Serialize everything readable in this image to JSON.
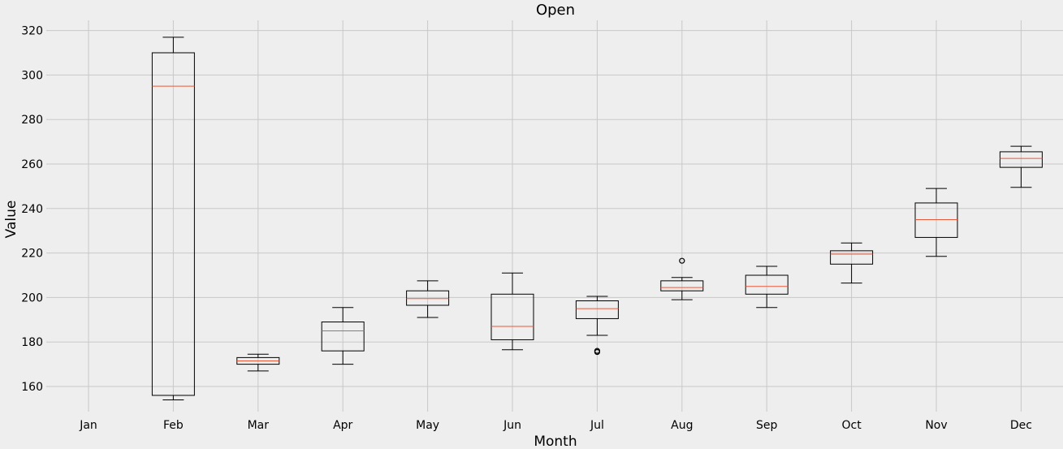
{
  "chart_data": {
    "type": "boxplot",
    "title": "Open",
    "xlabel": "Month",
    "ylabel": "Value",
    "ylim": [
      147,
      326
    ],
    "yticks": [
      160,
      180,
      200,
      220,
      240,
      260,
      280,
      300,
      320
    ],
    "grid": true,
    "categories": [
      "Jan",
      "Feb",
      "Mar",
      "Apr",
      "May",
      "Jun",
      "Jul",
      "Aug",
      "Sep",
      "Oct",
      "Nov",
      "Dec"
    ],
    "boxes": [
      null,
      {
        "whislo": 154,
        "q1": 156,
        "med": 295,
        "q3": 310,
        "whishi": 317,
        "fliers": []
      },
      {
        "whislo": 167,
        "q1": 170,
        "med": 171.5,
        "q3": 173,
        "whishi": 174.5,
        "fliers": []
      },
      {
        "whislo": 170,
        "q1": 176,
        "med": 185,
        "q3": 189,
        "whishi": 195.5,
        "fliers": []
      },
      {
        "whislo": 191,
        "q1": 196.5,
        "med": 199.5,
        "q3": 203,
        "whishi": 207.5,
        "fliers": []
      },
      {
        "whislo": 176.5,
        "q1": 181,
        "med": 187,
        "q3": 201.5,
        "whishi": 211,
        "fliers": []
      },
      {
        "whislo": 183,
        "q1": 190.5,
        "med": 195,
        "q3": 198.5,
        "whishi": 200.5,
        "fliers": [
          175.5,
          176
        ]
      },
      {
        "whislo": 199,
        "q1": 203,
        "med": 204.5,
        "q3": 207.5,
        "whishi": 209,
        "fliers": [
          216.5
        ]
      },
      {
        "whislo": 195.5,
        "q1": 201.5,
        "med": 205,
        "q3": 210,
        "whishi": 214,
        "fliers": []
      },
      {
        "whislo": 206.5,
        "q1": 215,
        "med": 219.5,
        "q3": 221,
        "whishi": 224.5,
        "fliers": []
      },
      {
        "whislo": 218.5,
        "q1": 227,
        "med": 235,
        "q3": 242.5,
        "whishi": 249,
        "fliers": []
      },
      {
        "whislo": 249.5,
        "q1": 258.5,
        "med": 262.5,
        "q3": 265.5,
        "whishi": 268,
        "fliers": []
      }
    ],
    "colors": {
      "box": "#000000",
      "median": "#e8583a",
      "grid": "#c8c8c8",
      "background": "#eeeeee"
    }
  }
}
